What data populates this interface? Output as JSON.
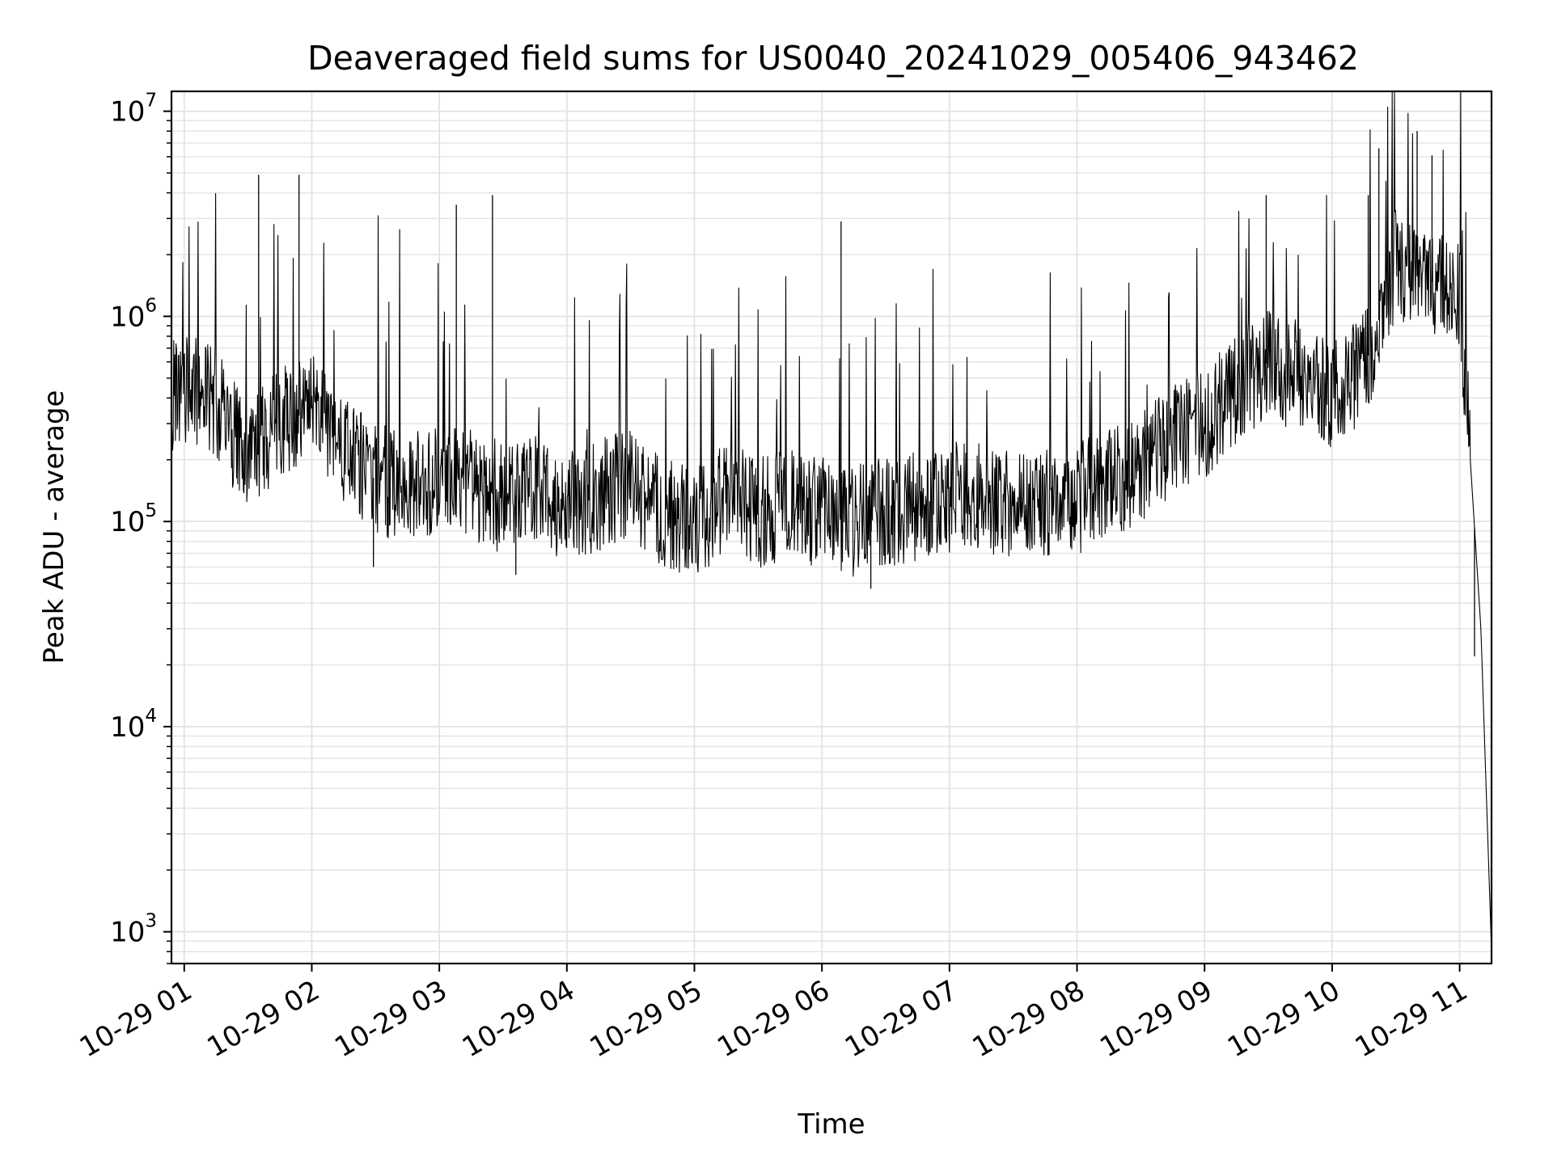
{
  "chart_data": {
    "type": "line",
    "title": "Deaveraged field sums for US0040_20241029_005406_943462",
    "xlabel": "Time",
    "ylabel": "Peak ADU - average",
    "yscale": "log",
    "ylim": [
      700,
      12500000
    ],
    "xlim": [
      "2024-10-29 00:54",
      "2024-10-29 11:15"
    ],
    "grid": true,
    "series_color": "#000000",
    "x_ticks": [
      {
        "label": "10-29 01",
        "value": "2024-10-29 01:00"
      },
      {
        "label": "10-29 02",
        "value": "2024-10-29 02:00"
      },
      {
        "label": "10-29 03",
        "value": "2024-10-29 03:00"
      },
      {
        "label": "10-29 04",
        "value": "2024-10-29 04:00"
      },
      {
        "label": "10-29 05",
        "value": "2024-10-29 05:00"
      },
      {
        "label": "10-29 06",
        "value": "2024-10-29 06:00"
      },
      {
        "label": "10-29 07",
        "value": "2024-10-29 07:00"
      },
      {
        "label": "10-29 08",
        "value": "2024-10-29 08:00"
      },
      {
        "label": "10-29 09",
        "value": "2024-10-29 09:00"
      },
      {
        "label": "10-29 10",
        "value": "2024-10-29 10:00"
      },
      {
        "label": "10-29 11",
        "value": "2024-10-29 11:00"
      }
    ],
    "y_ticks": [
      {
        "base": "10",
        "exp": "3",
        "value": 1000
      },
      {
        "base": "10",
        "exp": "4",
        "value": 10000
      },
      {
        "base": "10",
        "exp": "5",
        "value": 100000
      },
      {
        "base": "10",
        "exp": "6",
        "value": 1000000
      },
      {
        "base": "10",
        "exp": "7",
        "value": 10000000
      }
    ],
    "series": [
      {
        "x": [
          "2024-10-29 00:54",
          "2024-10-29 01:00",
          "2024-10-29 01:15",
          "2024-10-29 01:30",
          "2024-10-29 01:45",
          "2024-10-29 02:00",
          "2024-10-29 02:15",
          "2024-10-29 02:30",
          "2024-10-29 02:45",
          "2024-10-29 03:00",
          "2024-10-29 03:15",
          "2024-10-29 03:30",
          "2024-10-29 03:45",
          "2024-10-29 04:00",
          "2024-10-29 04:15",
          "2024-10-29 04:30",
          "2024-10-29 04:45",
          "2024-10-29 05:00",
          "2024-10-29 05:15",
          "2024-10-29 05:30",
          "2024-10-29 05:45",
          "2024-10-29 06:00",
          "2024-10-29 06:15",
          "2024-10-29 06:30",
          "2024-10-29 06:45",
          "2024-10-29 07:00",
          "2024-10-29 07:15",
          "2024-10-29 07:30",
          "2024-10-29 07:45",
          "2024-10-29 08:00",
          "2024-10-29 08:15",
          "2024-10-29 08:30",
          "2024-10-29 08:45",
          "2024-10-29 09:00",
          "2024-10-29 09:15",
          "2024-10-29 09:30",
          "2024-10-29 09:45",
          "2024-10-29 10:00",
          "2024-10-29 10:15",
          "2024-10-29 10:30",
          "2024-10-29 10:45",
          "2024-10-29 11:00",
          "2024-10-29 11:05",
          "2024-10-29 11:10",
          "2024-10-29 11:15"
        ],
        "y": [
          400000,
          450000,
          380000,
          200000,
          300000,
          350000,
          220000,
          160000,
          150000,
          160000,
          150000,
          130000,
          140000,
          120000,
          135000,
          150000,
          110000,
          100000,
          130000,
          110000,
          120000,
          110000,
          100000,
          110000,
          120000,
          130000,
          130000,
          125000,
          120000,
          130000,
          150000,
          180000,
          250000,
          300000,
          450000,
          600000,
          500000,
          400000,
          550000,
          1800000,
          1500000,
          1300000,
          200000,
          30000,
          800
        ],
        "peaks": [
          {
            "x": "2024-10-29 01:35",
            "y": 4900000
          },
          {
            "x": "2024-10-29 01:54",
            "y": 4900000
          },
          {
            "x": "2024-10-29 03:08",
            "y": 3500000
          },
          {
            "x": "2024-10-29 03:25",
            "y": 3900000
          },
          {
            "x": "2024-10-29 06:09",
            "y": 2900000
          },
          {
            "x": "2024-10-29 09:29",
            "y": 3900000
          },
          {
            "x": "2024-10-29 10:17",
            "y": 3900000
          },
          {
            "x": "2024-10-29 10:22",
            "y": 6600000
          },
          {
            "x": "2024-10-29 10:40",
            "y": 8000000
          },
          {
            "x": "2024-10-29 10:47",
            "y": 6100000
          }
        ],
        "dips": [
          {
            "x": "2024-10-29 02:29",
            "y": 60000
          },
          {
            "x": "2024-10-29 03:36",
            "y": 55000
          },
          {
            "x": "2024-10-29 06:23",
            "y": 47000
          },
          {
            "x": "2024-10-29 11:07",
            "y": 22000
          }
        ]
      }
    ]
  }
}
